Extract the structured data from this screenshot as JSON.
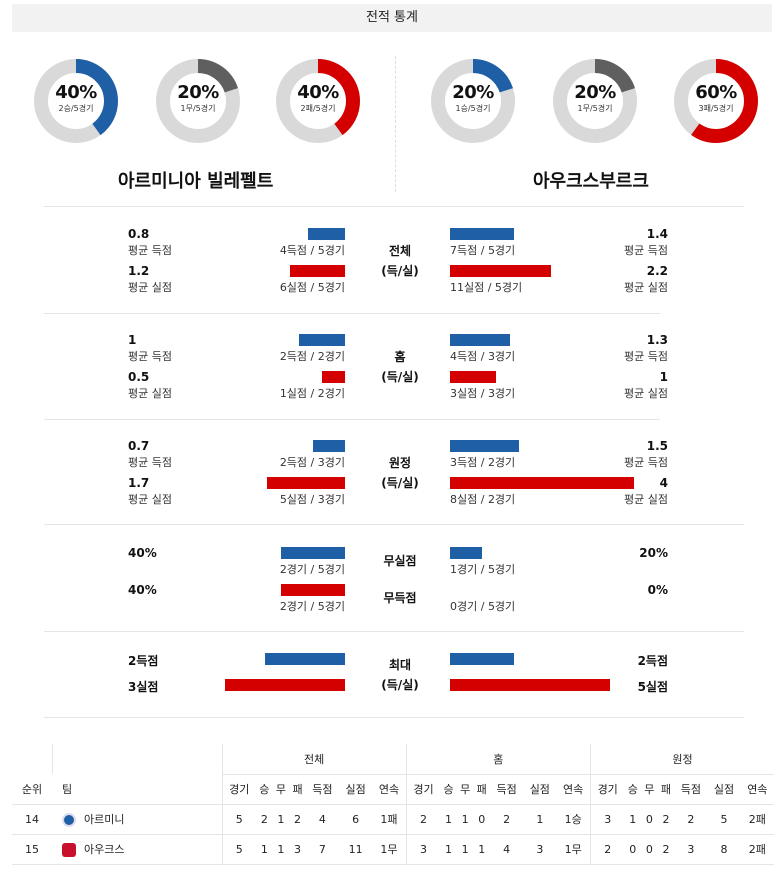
{
  "header": {
    "title": "전적 통계"
  },
  "colors": {
    "blue": "#1f5fa6",
    "red": "#d40000",
    "gray": "#5f5f5f",
    "track": "#d9d9d9"
  },
  "home": {
    "name": "아르미니아 빌레펠트",
    "donuts": [
      {
        "pct": "40%",
        "sub": "2승/5경기",
        "value": 0.4,
        "color": "blue"
      },
      {
        "pct": "20%",
        "sub": "1무/5경기",
        "value": 0.2,
        "color": "gray"
      },
      {
        "pct": "40%",
        "sub": "2패/5경기",
        "value": 0.4,
        "color": "red"
      }
    ]
  },
  "away": {
    "name": "아우크스부르크",
    "donuts": [
      {
        "pct": "20%",
        "sub": "1승/5경기",
        "value": 0.2,
        "color": "blue"
      },
      {
        "pct": "20%",
        "sub": "1무/5경기",
        "value": 0.2,
        "color": "gray"
      },
      {
        "pct": "60%",
        "sub": "3패/5경기",
        "value": 0.6,
        "color": "red"
      }
    ]
  },
  "sections": [
    {
      "label1": "전체",
      "label2": "(득/실)",
      "rows": [
        {
          "h_val": "0.8",
          "h_lbl": "평균 득점",
          "h_bar": "4득점 / 5경기",
          "h_len": 0.8,
          "a_val": "1.4",
          "a_lbl": "평균 득점",
          "a_bar": "7득점 / 5경기",
          "a_len": 1.4,
          "color": "blue"
        },
        {
          "h_val": "1.2",
          "h_lbl": "평균 실점",
          "h_bar": "6실점 / 5경기",
          "h_len": 1.2,
          "a_val": "2.2",
          "a_lbl": "평균 실점",
          "a_bar": "11실점 / 5경기",
          "a_len": 2.2,
          "color": "red"
        }
      ]
    },
    {
      "label1": "홈",
      "label2": "(득/실)",
      "rows": [
        {
          "h_val": "1",
          "h_lbl": "평균 득점",
          "h_bar": "2득점 / 2경기",
          "h_len": 1.0,
          "a_val": "1.3",
          "a_lbl": "평균 득점",
          "a_bar": "4득점 / 3경기",
          "a_len": 1.3,
          "color": "blue"
        },
        {
          "h_val": "0.5",
          "h_lbl": "평균 실점",
          "h_bar": "1실점 / 2경기",
          "h_len": 0.5,
          "a_val": "1",
          "a_lbl": "평균 실점",
          "a_bar": "3실점 / 3경기",
          "a_len": 1.0,
          "color": "red"
        }
      ]
    },
    {
      "label1": "원정",
      "label2": "(득/실)",
      "rows": [
        {
          "h_val": "0.7",
          "h_lbl": "평균 득점",
          "h_bar": "2득점 / 3경기",
          "h_len": 0.7,
          "a_val": "1.5",
          "a_lbl": "평균 득점",
          "a_bar": "3득점 / 2경기",
          "a_len": 1.5,
          "color": "blue"
        },
        {
          "h_val": "1.7",
          "h_lbl": "평균 실점",
          "h_bar": "5실점 / 3경기",
          "h_len": 1.7,
          "a_val": "4",
          "a_lbl": "평균 실점",
          "a_bar": "8실점 / 2경기",
          "a_len": 4.0,
          "color": "red"
        }
      ]
    }
  ],
  "clean": {
    "rows": [
      {
        "label": "무실점",
        "h_val": "40%",
        "h_bar": "2경기 / 5경기",
        "h_len": 0.4,
        "a_val": "20%",
        "a_bar": "1경기 / 5경기",
        "a_len": 0.2,
        "color": "blue"
      },
      {
        "label": "무득점",
        "h_val": "40%",
        "h_bar": "2경기 / 5경기",
        "h_len": 0.4,
        "a_val": "0%",
        "a_bar": "0경기 / 5경기",
        "a_len": 0.0,
        "color": "red"
      }
    ]
  },
  "max": {
    "label1": "최대",
    "label2": "(득/실)",
    "rows": [
      {
        "h_val": "2득점",
        "h_len": 2,
        "a_val": "2득점",
        "a_len": 2,
        "color": "blue"
      },
      {
        "h_val": "3실점",
        "h_len": 3,
        "a_val": "5실점",
        "a_len": 5,
        "color": "red"
      }
    ]
  },
  "standings": {
    "groups": [
      "전체",
      "홈",
      "원정"
    ],
    "rank_col": "순위",
    "team_col": "팀",
    "sub_cols": [
      "경기",
      "승",
      "무",
      "패",
      "득점",
      "실점",
      "연속"
    ],
    "rows": [
      {
        "rank": "14",
        "team": "아르미니",
        "logo": "a",
        "total": [
          "5",
          "2",
          "1",
          "2",
          "4",
          "6",
          "1패"
        ],
        "home": [
          "2",
          "1",
          "1",
          "0",
          "2",
          "1",
          "1승"
        ],
        "away": [
          "3",
          "1",
          "0",
          "2",
          "2",
          "5",
          "2패"
        ]
      },
      {
        "rank": "15",
        "team": "아우크스",
        "logo": "b",
        "total": [
          "5",
          "1",
          "1",
          "3",
          "7",
          "11",
          "1무"
        ],
        "home": [
          "3",
          "1",
          "1",
          "1",
          "4",
          "3",
          "1무"
        ],
        "away": [
          "2",
          "0",
          "0",
          "2",
          "3",
          "8",
          "2패"
        ]
      }
    ]
  }
}
